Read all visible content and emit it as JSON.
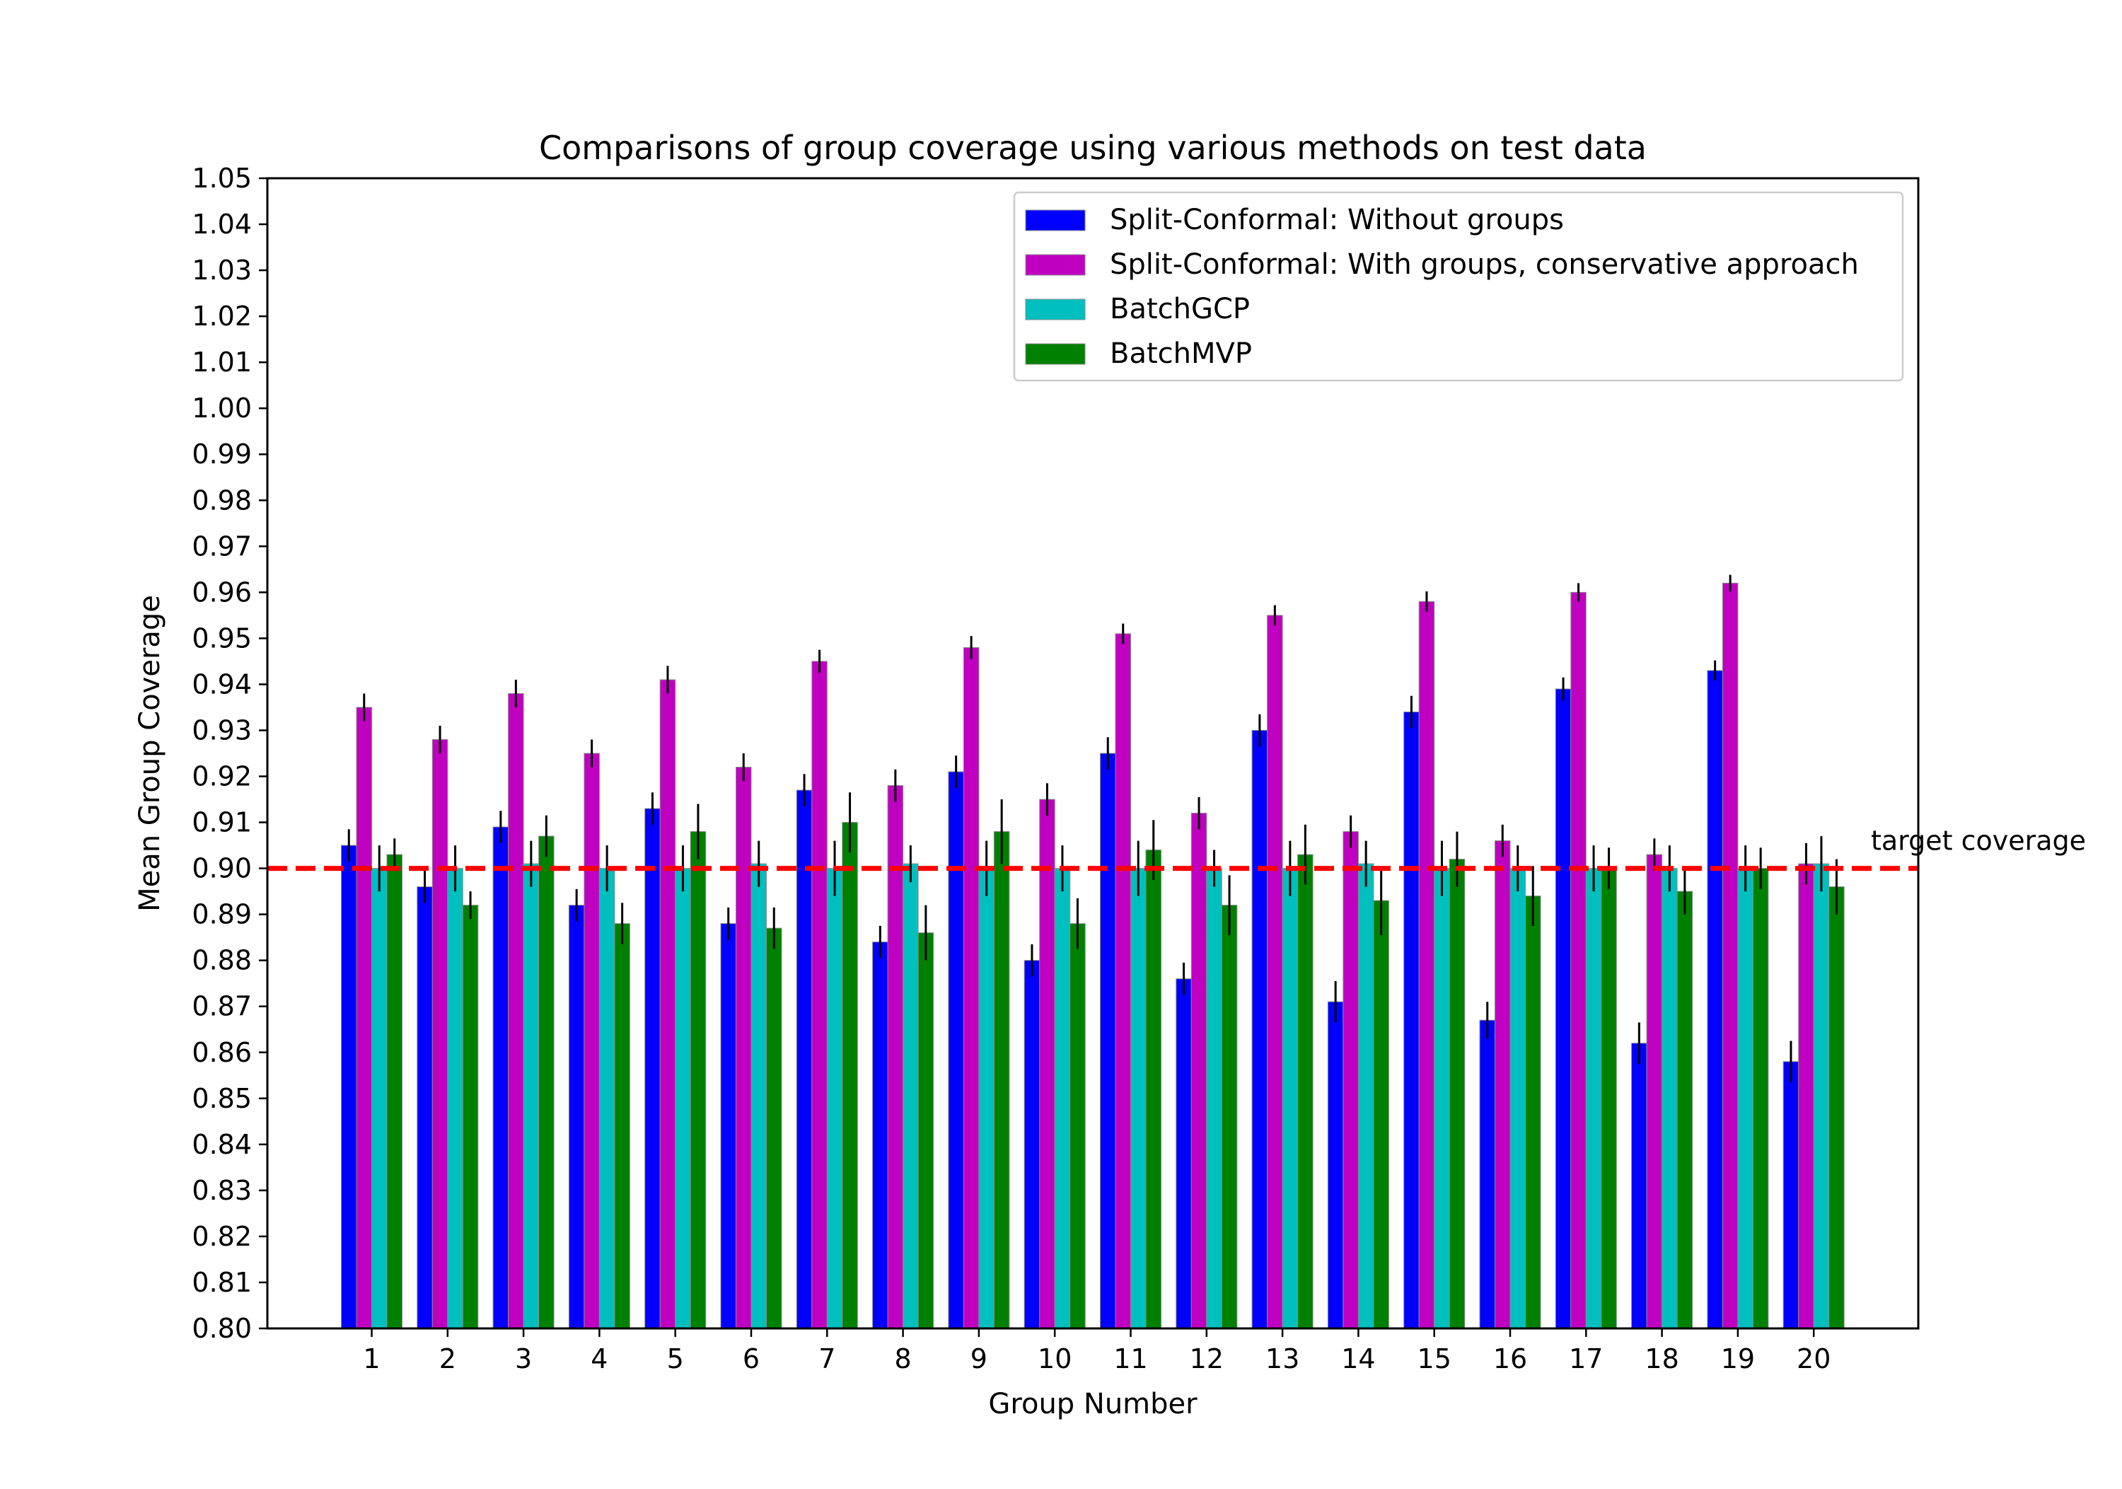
{
  "chart_data": {
    "type": "bar",
    "title": "Comparisons of group coverage using various methods on test data",
    "xlabel": "Group Number",
    "ylabel": "Mean Group Coverage",
    "ylim": [
      0.8,
      1.05
    ],
    "yticks": [
      "0.80",
      "0.81",
      "0.82",
      "0.83",
      "0.84",
      "0.85",
      "0.86",
      "0.87",
      "0.88",
      "0.89",
      "0.90",
      "0.91",
      "0.92",
      "0.93",
      "0.94",
      "0.95",
      "0.96",
      "0.97",
      "0.98",
      "0.99",
      "1.00",
      "1.01",
      "1.02",
      "1.03",
      "1.04",
      "1.05"
    ],
    "categories": [
      "1",
      "2",
      "3",
      "4",
      "5",
      "6",
      "7",
      "8",
      "9",
      "10",
      "11",
      "12",
      "13",
      "14",
      "15",
      "16",
      "17",
      "18",
      "19",
      "20"
    ],
    "legend_position": "top-right",
    "reference_line": {
      "value": 0.9,
      "label": "target coverage",
      "color": "#ff0000",
      "style": "dashed"
    },
    "series": [
      {
        "name": "Split-Conformal: Without groups",
        "color": "#0000ff",
        "values": [
          0.905,
          0.896,
          0.909,
          0.892,
          0.913,
          0.888,
          0.917,
          0.884,
          0.921,
          0.88,
          0.925,
          0.876,
          0.93,
          0.871,
          0.934,
          0.867,
          0.939,
          0.862,
          0.943,
          0.858
        ],
        "errors": [
          0.0035,
          0.0035,
          0.0035,
          0.0035,
          0.0035,
          0.0035,
          0.0035,
          0.0035,
          0.0035,
          0.0035,
          0.0035,
          0.0035,
          0.0035,
          0.0045,
          0.0035,
          0.004,
          0.0025,
          0.0045,
          0.0022,
          0.0045
        ]
      },
      {
        "name": "Split-Conformal: With groups, conservative approach",
        "color": "#c000c0",
        "values": [
          0.935,
          0.928,
          0.938,
          0.925,
          0.941,
          0.922,
          0.945,
          0.918,
          0.948,
          0.915,
          0.951,
          0.912,
          0.955,
          0.908,
          0.958,
          0.906,
          0.96,
          0.903,
          0.962,
          0.901
        ],
        "errors": [
          0.003,
          0.003,
          0.003,
          0.003,
          0.003,
          0.003,
          0.0025,
          0.0035,
          0.0025,
          0.0035,
          0.0022,
          0.0035,
          0.0022,
          0.0035,
          0.0022,
          0.0035,
          0.002,
          0.0035,
          0.0018,
          0.0045
        ]
      },
      {
        "name": "BatchGCP",
        "color": "#00bfbf",
        "values": [
          0.9,
          0.9,
          0.901,
          0.9,
          0.9,
          0.901,
          0.9,
          0.901,
          0.9,
          0.9,
          0.9,
          0.9,
          0.9,
          0.901,
          0.9,
          0.9,
          0.9,
          0.9,
          0.9,
          0.901
        ],
        "errors": [
          0.005,
          0.005,
          0.005,
          0.005,
          0.005,
          0.005,
          0.006,
          0.004,
          0.006,
          0.005,
          0.006,
          0.004,
          0.006,
          0.005,
          0.006,
          0.005,
          0.005,
          0.005,
          0.005,
          0.006
        ]
      },
      {
        "name": "BatchMVP",
        "color": "#008000",
        "values": [
          0.903,
          0.892,
          0.907,
          0.888,
          0.908,
          0.887,
          0.91,
          0.886,
          0.908,
          0.888,
          0.904,
          0.892,
          0.903,
          0.893,
          0.902,
          0.894,
          0.9,
          0.895,
          0.9,
          0.896
        ],
        "errors": [
          0.0035,
          0.003,
          0.0045,
          0.0045,
          0.006,
          0.0045,
          0.0065,
          0.006,
          0.007,
          0.0055,
          0.0065,
          0.0065,
          0.0065,
          0.0075,
          0.006,
          0.0065,
          0.0045,
          0.005,
          0.0045,
          0.006
        ]
      }
    ]
  }
}
